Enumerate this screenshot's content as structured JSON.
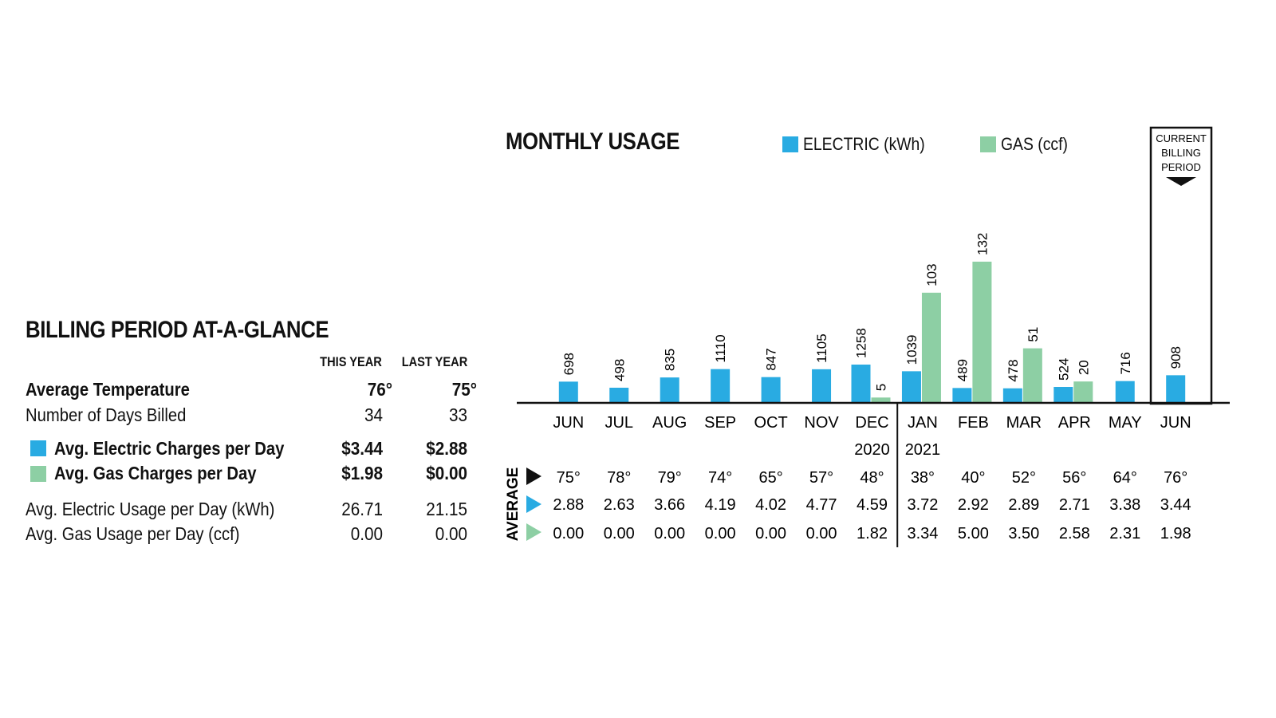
{
  "colors": {
    "electric": "#29abe2",
    "gas": "#8dcfa4",
    "text": "#111111"
  },
  "glance": {
    "title": "BILLING PERIOD AT-A-GLANCE",
    "col_this": "THIS YEAR",
    "col_last": "LAST YEAR",
    "rows": [
      {
        "label": "Average Temperature",
        "this": "76°",
        "last": "75°"
      },
      {
        "label": "Number of Days Billed",
        "this": "34",
        "last": "33"
      },
      {
        "label": "Avg. Electric Charges per Day",
        "this": "$3.44",
        "last": "$2.88"
      },
      {
        "label": "Avg. Gas Charges per Day",
        "this": "$1.98",
        "last": "$0.00"
      },
      {
        "label": "Avg. Electric Usage per Day (kWh)",
        "this": "26.71",
        "last": "21.15"
      },
      {
        "label": "Avg. Gas Usage per Day (ccf)",
        "this": "0.00",
        "last": "0.00"
      }
    ]
  },
  "chart_data": {
    "type": "bar",
    "title": "MONTHLY USAGE",
    "legend": [
      {
        "name": "ELECTRIC (kWh)",
        "color": "#29abe2"
      },
      {
        "name": "GAS (ccf)",
        "color": "#8dcfa4"
      }
    ],
    "categories": [
      "JUN",
      "JUL",
      "AUG",
      "SEP",
      "OCT",
      "NOV",
      "DEC",
      "JAN",
      "FEB",
      "MAR",
      "APR",
      "MAY",
      "JUN"
    ],
    "series": [
      {
        "name": "ELECTRIC (kWh)",
        "values": [
          698,
          498,
          835,
          1110,
          847,
          1105,
          1258,
          1039,
          489,
          478,
          524,
          716,
          908
        ]
      },
      {
        "name": "GAS (ccf)",
        "values": [
          null,
          null,
          null,
          null,
          null,
          null,
          5,
          103,
          132,
          51,
          20,
          null,
          null
        ]
      }
    ],
    "electric_max": 1258,
    "gas_max": 132,
    "year_labels": [
      "2020",
      "2021"
    ],
    "current_period_label": [
      "CURRENT",
      "BILLING",
      "PERIOD"
    ],
    "averages_label": "AVERAGE",
    "avg_temperature": [
      "75°",
      "78°",
      "79°",
      "74°",
      "65°",
      "57°",
      "48°",
      "38°",
      "40°",
      "52°",
      "56°",
      "64°",
      "76°"
    ],
    "avg_electric_per_day": [
      "2.88",
      "2.63",
      "3.66",
      "4.19",
      "4.02",
      "4.77",
      "4.59",
      "3.72",
      "2.92",
      "2.89",
      "2.71",
      "3.38",
      "3.44"
    ],
    "avg_gas_per_day": [
      "0.00",
      "0.00",
      "0.00",
      "0.00",
      "0.00",
      "0.00",
      "1.82",
      "3.34",
      "5.00",
      "3.50",
      "2.58",
      "2.31",
      "1.98"
    ]
  }
}
